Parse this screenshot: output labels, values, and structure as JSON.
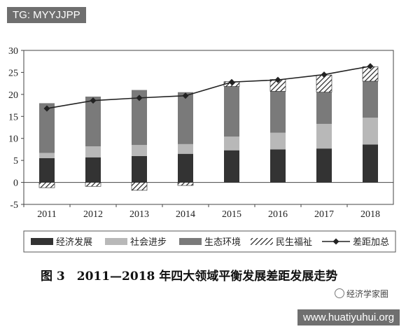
{
  "watermark_top": "TG: MYYJJPP",
  "watermark_bottom": "www.huatiyuhui.org",
  "brand_label": "经济学家圈",
  "caption": "图 3　2011—2018 年四大领域平衡发展差距发展走势",
  "chart_data": {
    "type": "bar",
    "stacked": true,
    "categories": [
      "2011",
      "2012",
      "2013",
      "2014",
      "2015",
      "2016",
      "2017",
      "2018"
    ],
    "ylim": [
      -5,
      30
    ],
    "yticks": [
      -5,
      0,
      5,
      10,
      15,
      20,
      25,
      30
    ],
    "grid": false,
    "legend_position": "bottom",
    "series": [
      {
        "name": "经济发展",
        "kind": "bar",
        "color": "#333333",
        "values": [
          5.5,
          5.7,
          6.0,
          6.5,
          7.3,
          7.5,
          7.7,
          8.6
        ]
      },
      {
        "name": "社会进步",
        "kind": "bar",
        "color": "#b8b8b8",
        "values": [
          1.2,
          2.5,
          2.5,
          2.2,
          3.1,
          3.8,
          5.6,
          6.1
        ]
      },
      {
        "name": "生态环境",
        "kind": "bar",
        "color": "#7a7a7a",
        "values": [
          11.3,
          11.3,
          12.5,
          11.8,
          11.4,
          9.4,
          7.2,
          8.3
        ]
      },
      {
        "name": "民生福祉",
        "kind": "bar",
        "pattern": "hatch",
        "values": [
          -1.2,
          -0.9,
          -1.8,
          -0.7,
          1.1,
          2.7,
          3.9,
          3.3
        ]
      },
      {
        "name": "差距加总",
        "kind": "line",
        "color": "#222222",
        "values": [
          16.8,
          18.6,
          19.2,
          19.7,
          22.8,
          23.3,
          24.5,
          26.4
        ]
      }
    ]
  }
}
